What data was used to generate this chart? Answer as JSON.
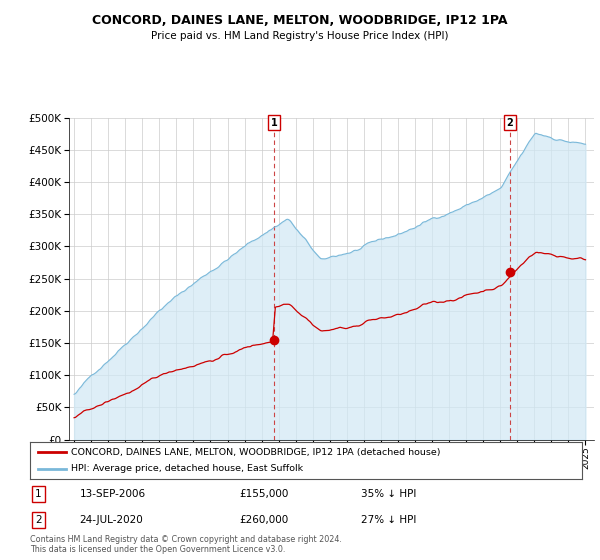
{
  "title": "CONCORD, DAINES LANE, MELTON, WOODBRIDGE, IP12 1PA",
  "subtitle": "Price paid vs. HM Land Registry's House Price Index (HPI)",
  "ytick_values": [
    0,
    50000,
    100000,
    150000,
    200000,
    250000,
    300000,
    350000,
    400000,
    450000,
    500000
  ],
  "ylim": [
    0,
    500000
  ],
  "hpi_color": "#7ab8d9",
  "hpi_fill_color": "#d0e8f5",
  "price_color": "#cc0000",
  "marker1_x": 2006.72,
  "marker1_y": 155000,
  "marker2_x": 2020.56,
  "marker2_y": 260000,
  "legend_label1": "CONCORD, DAINES LANE, MELTON, WOODBRIDGE, IP12 1PA (detached house)",
  "legend_label2": "HPI: Average price, detached house, East Suffolk",
  "annotation1": "13-SEP-2006",
  "annotation1_price": "£155,000",
  "annotation1_hpi": "35% ↓ HPI",
  "annotation2": "24-JUL-2020",
  "annotation2_price": "£260,000",
  "annotation2_hpi": "27% ↓ HPI",
  "footer": "Contains HM Land Registry data © Crown copyright and database right 2024.\nThis data is licensed under the Open Government Licence v3.0.",
  "background_color": "#ffffff",
  "grid_color": "#cccccc",
  "xmin": 1995,
  "xmax": 2025
}
